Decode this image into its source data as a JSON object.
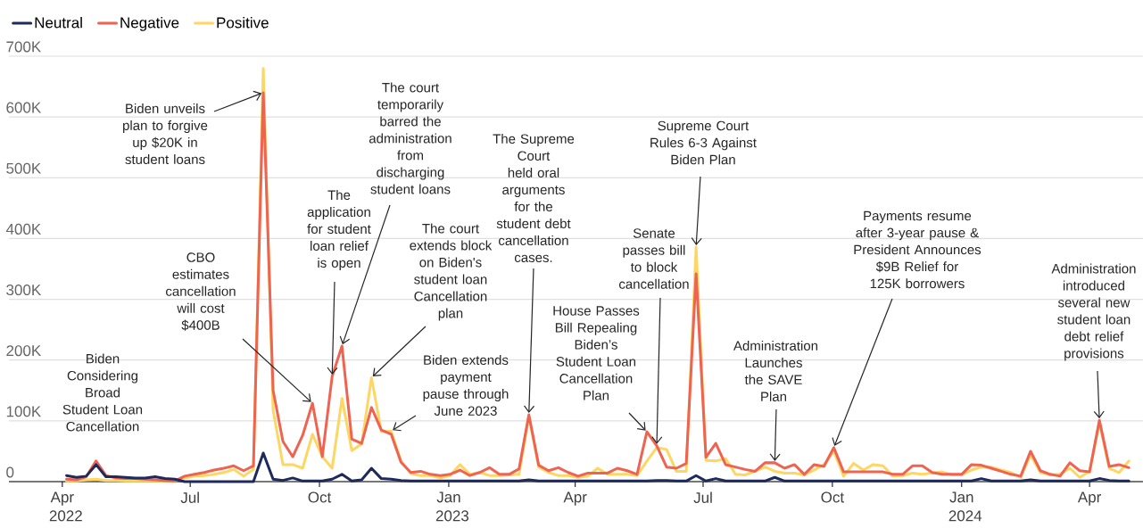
{
  "chart_data": {
    "type": "line",
    "x": [
      "2022-04-04",
      "2022-04-11",
      "2022-04-18",
      "2022-04-25",
      "2022-05-02",
      "2022-05-09",
      "2022-05-16",
      "2022-05-23",
      "2022-05-30",
      "2022-06-06",
      "2022-06-13",
      "2022-06-20",
      "2022-06-27",
      "2022-07-04",
      "2022-07-11",
      "2022-07-18",
      "2022-07-25",
      "2022-08-01",
      "2022-08-08",
      "2022-08-15",
      "2022-08-22",
      "2022-08-29",
      "2022-09-05",
      "2022-09-12",
      "2022-09-19",
      "2022-09-26",
      "2022-10-03",
      "2022-10-10",
      "2022-10-17",
      "2022-10-24",
      "2022-10-31",
      "2022-11-07",
      "2022-11-14",
      "2022-11-21",
      "2022-11-28",
      "2022-12-05",
      "2022-12-12",
      "2022-12-19",
      "2022-12-26",
      "2023-01-02",
      "2023-01-09",
      "2023-01-16",
      "2023-01-23",
      "2023-01-30",
      "2023-02-06",
      "2023-02-13",
      "2023-02-20",
      "2023-02-27",
      "2023-03-06",
      "2023-03-13",
      "2023-03-20",
      "2023-03-27",
      "2023-04-03",
      "2023-04-10",
      "2023-04-17",
      "2023-04-24",
      "2023-05-01",
      "2023-05-08",
      "2023-05-15",
      "2023-05-22",
      "2023-05-29",
      "2023-06-05",
      "2023-06-12",
      "2023-06-19",
      "2023-06-26",
      "2023-07-03",
      "2023-07-10",
      "2023-07-17",
      "2023-07-24",
      "2023-07-31",
      "2023-08-07",
      "2023-08-14",
      "2023-08-21",
      "2023-08-28",
      "2023-09-04",
      "2023-09-11",
      "2023-09-18",
      "2023-09-25",
      "2023-10-02",
      "2023-10-09",
      "2023-10-16",
      "2023-10-23",
      "2023-10-30",
      "2023-11-06",
      "2023-11-13",
      "2023-11-20",
      "2023-11-27",
      "2023-12-04",
      "2023-12-11",
      "2023-12-18",
      "2023-12-25",
      "2024-01-01",
      "2024-01-08",
      "2024-01-15",
      "2024-01-22",
      "2024-01-29",
      "2024-02-05",
      "2024-02-12",
      "2024-02-19",
      "2024-02-26",
      "2024-03-04",
      "2024-03-11",
      "2024-03-18",
      "2024-03-25",
      "2024-04-01",
      "2024-04-08",
      "2024-04-15",
      "2024-04-22",
      "2024-04-29"
    ],
    "series": [
      {
        "name": "Neutral",
        "color": "#1f2a5c",
        "values": [
          10000,
          7000,
          9000,
          28000,
          8000,
          8000,
          7000,
          6000,
          6000,
          8000,
          5000,
          4000,
          0,
          0,
          0,
          0,
          0,
          0,
          0,
          0,
          47000,
          4000,
          2000,
          6000,
          1000,
          1000,
          1000,
          4000,
          12000,
          1000,
          3000,
          22000,
          5000,
          4000,
          2000,
          1000,
          1000,
          1000,
          1000,
          1000,
          1000,
          1000,
          1000,
          1000,
          1000,
          1000,
          1000,
          3000,
          1000,
          1000,
          1000,
          1000,
          1000,
          1000,
          1000,
          1000,
          1000,
          1000,
          1000,
          1000,
          2000,
          2000,
          1000,
          1000,
          10000,
          1000,
          5000,
          1000,
          1000,
          1000,
          1000,
          1000,
          7000,
          1000,
          1000,
          1000,
          1000,
          1000,
          1000,
          1000,
          1000,
          1000,
          1000,
          1000,
          1000,
          1000,
          1000,
          1000,
          1000,
          1000,
          1000,
          1000,
          1000,
          5000,
          1000,
          1000,
          1000,
          1000,
          3000,
          1000,
          1000,
          1000,
          1000,
          1000,
          1000,
          5000,
          2000,
          1000,
          1000
        ]
      },
      {
        "name": "Negative",
        "color": "#ef6351",
        "values": [
          4000,
          3000,
          8000,
          34000,
          10000,
          6000,
          5000,
          5000,
          4000,
          3000,
          2000,
          1000,
          9000,
          12000,
          15000,
          19000,
          22000,
          26000,
          18000,
          26000,
          640000,
          150000,
          66000,
          41000,
          76000,
          129000,
          41000,
          173000,
          223000,
          70000,
          63000,
          122000,
          85000,
          78000,
          32000,
          15000,
          17000,
          12000,
          10000,
          12000,
          19000,
          10000,
          15000,
          23000,
          12000,
          12000,
          21000,
          110000,
          27000,
          18000,
          23000,
          15000,
          9000,
          14000,
          14000,
          14000,
          22000,
          18000,
          12000,
          82000,
          59000,
          24000,
          22000,
          30000,
          342000,
          40000,
          63000,
          28000,
          24000,
          20000,
          17000,
          31000,
          31000,
          22000,
          28000,
          12000,
          28000,
          25000,
          56000,
          16000,
          16000,
          16000,
          16000,
          16000,
          12000,
          12000,
          26000,
          26000,
          15000,
          12000,
          12000,
          12000,
          28000,
          27000,
          22000,
          17000,
          12000,
          9000,
          50000,
          18000,
          12000,
          9000,
          31000,
          18000,
          16000,
          101000,
          25000,
          28000,
          23000
        ]
      },
      {
        "name": "Positive",
        "color": "#fdd663",
        "values": [
          1000,
          1000,
          3000,
          4000,
          2000,
          2000,
          1000,
          1000,
          1000,
          1000,
          1000,
          1000,
          6000,
          9000,
          10000,
          12000,
          15000,
          20000,
          9000,
          20000,
          680000,
          117000,
          28000,
          28000,
          22000,
          78000,
          41000,
          22000,
          137000,
          51000,
          62000,
          171000,
          83000,
          83000,
          34000,
          13000,
          10000,
          10000,
          6000,
          10000,
          28000,
          12000,
          15000,
          10000,
          10000,
          11000,
          12000,
          107000,
          24000,
          15000,
          10000,
          10000,
          7000,
          9000,
          22000,
          12000,
          12000,
          12000,
          10000,
          34000,
          56000,
          53000,
          17000,
          17000,
          386000,
          35000,
          34000,
          38000,
          12000,
          11000,
          17000,
          24000,
          17000,
          14000,
          14000,
          11000,
          19000,
          28000,
          50000,
          9000,
          30000,
          19000,
          28000,
          26000,
          9000,
          10000,
          14000,
          12000,
          14000,
          16000,
          11000,
          11000,
          19000,
          24000,
          24000,
          19000,
          15000,
          7000,
          44000,
          15000,
          11000,
          12000,
          22000,
          7000,
          17000,
          97000,
          22000,
          15000,
          34000
        ]
      }
    ],
    "xlim": [
      "2022-02-22",
      "2024-05-09"
    ],
    "xticks": [
      {
        "value": "2022-04-01",
        "label": "Apr 2022"
      },
      {
        "value": "2022-07-01",
        "label": "Jul"
      },
      {
        "value": "2022-10-01",
        "label": "Oct"
      },
      {
        "value": "2023-01-01",
        "label": "Jan 2023"
      },
      {
        "value": "2023-04-01",
        "label": "Apr"
      },
      {
        "value": "2023-07-01",
        "label": "Jul"
      },
      {
        "value": "2023-10-01",
        "label": "Oct"
      },
      {
        "value": "2024-01-01",
        "label": "Jan 2024"
      },
      {
        "value": "2024-04-01",
        "label": "Apr"
      }
    ],
    "ylim": [
      0,
      700000
    ],
    "yticks": [
      0,
      {
        "value": 100000,
        "label": "100K"
      },
      {
        "value": 200000,
        "label": "200K"
      },
      {
        "value": 300000,
        "label": "300K"
      },
      {
        "value": 400000,
        "label": "400K"
      },
      {
        "value": 500000,
        "label": "500K"
      },
      {
        "value": 600000,
        "label": "600K"
      },
      {
        "value": 700000,
        "label": "700K"
      }
    ],
    "grid": "y",
    "legend": "top left",
    "annotations": [
      "Biden Considering Broad Student Loan Cancellation",
      {
        "text": "Biden unveils plan to forgive up $20K in student loans",
        "x": "2022-08-22",
        "y": 640000
      },
      {
        "text": "CBO estimates cancellation will cost $400B",
        "x": "2022-09-26",
        "y": 129000
      },
      {
        "text": "The application for student loan relief is open",
        "x": "2022-10-10",
        "y": 173000
      },
      {
        "text": "The court temporarily barred the administration from discharging student loans",
        "x": "2022-10-17",
        "y": 223000
      },
      {
        "text": "The court extends block on Biden's student loan Cancellation plan",
        "x": "2022-11-07",
        "y": 171000
      },
      {
        "text": "Biden extends payment pause through June 2023",
        "x": "2022-11-21",
        "y": 83000
      },
      {
        "text": "The Supreme Court held oral arguments for the student debt cancellation cases.",
        "x": "2023-02-27",
        "y": 110000
      },
      {
        "text": "House Passes Bill Repealing Biden’s Student Loan Cancellation Plan",
        "x": "2023-05-22",
        "y": 82000
      },
      {
        "text": "Senate passes bill to block cancellation",
        "x": "2023-05-29",
        "y": 59000
      },
      {
        "text": "Supreme Court Rules 6-3 Against Biden Plan",
        "x": "2023-06-26",
        "y": 386000
      },
      {
        "text": "Administration Launches the SAVE Plan",
        "x": "2023-08-21",
        "y": 31000
      },
      {
        "text": "Payments resume after 3-year pause & President Announces $9B Relief for 125K borrowers",
        "x": "2023-10-02",
        "y": 56000
      },
      {
        "text": "Administration introduced several new student loan debt relief provisions",
        "x": "2024-04-08",
        "y": 101000
      }
    ]
  }
}
